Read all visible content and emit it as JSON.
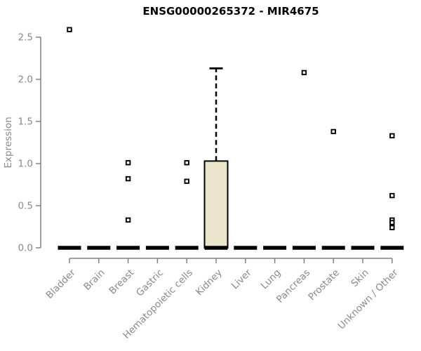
{
  "chart_data": {
    "type": "boxplot",
    "title": "ENSG00000265372 - MIR4675",
    "ylabel": "Expression",
    "xlabel": "",
    "ylim": [
      0.0,
      2.5
    ],
    "ytick_labels": [
      "0.0",
      "0.5",
      "1.0",
      "1.5",
      "2.0",
      "2.5"
    ],
    "ytick_values": [
      0.0,
      0.5,
      1.0,
      1.5,
      2.0,
      2.5
    ],
    "grid": false,
    "legend": null,
    "categories": [
      "Bladder",
      "Brain",
      "Breast",
      "Gastric",
      "Hematopoietic cells",
      "Kidney",
      "Liver",
      "Lung",
      "Pancreas",
      "Prostate",
      "Skin",
      "Unknown / Other"
    ],
    "boxes": [
      {
        "category": "Bladder",
        "median": 0.0,
        "q1": 0.0,
        "q3": 0.0,
        "whisker_low": 0.0,
        "whisker_high": 0.0,
        "outliers": [
          2.59
        ]
      },
      {
        "category": "Brain",
        "median": 0.0,
        "q1": 0.0,
        "q3": 0.0,
        "whisker_low": 0.0,
        "whisker_high": 0.0,
        "outliers": []
      },
      {
        "category": "Breast",
        "median": 0.0,
        "q1": 0.0,
        "q3": 0.0,
        "whisker_low": 0.0,
        "whisker_high": 0.0,
        "outliers": [
          1.01,
          0.82,
          0.33
        ]
      },
      {
        "category": "Gastric",
        "median": 0.0,
        "q1": 0.0,
        "q3": 0.0,
        "whisker_low": 0.0,
        "whisker_high": 0.0,
        "outliers": []
      },
      {
        "category": "Hematopoietic cells",
        "median": 0.0,
        "q1": 0.0,
        "q3": 0.0,
        "whisker_low": 0.0,
        "whisker_high": 0.0,
        "outliers": [
          1.01,
          0.79
        ]
      },
      {
        "category": "Kidney",
        "median": 0.0,
        "q1": 0.0,
        "q3": 1.03,
        "whisker_low": 0.0,
        "whisker_high": 2.13,
        "outliers": []
      },
      {
        "category": "Liver",
        "median": 0.0,
        "q1": 0.0,
        "q3": 0.0,
        "whisker_low": 0.0,
        "whisker_high": 0.0,
        "outliers": []
      },
      {
        "category": "Lung",
        "median": 0.0,
        "q1": 0.0,
        "q3": 0.0,
        "whisker_low": 0.0,
        "whisker_high": 0.0,
        "outliers": []
      },
      {
        "category": "Pancreas",
        "median": 0.0,
        "q1": 0.0,
        "q3": 0.0,
        "whisker_low": 0.0,
        "whisker_high": 0.0,
        "outliers": [
          2.08
        ]
      },
      {
        "category": "Prostate",
        "median": 0.0,
        "q1": 0.0,
        "q3": 0.0,
        "whisker_low": 0.0,
        "whisker_high": 0.0,
        "outliers": [
          1.38
        ]
      },
      {
        "category": "Skin",
        "median": 0.0,
        "q1": 0.0,
        "q3": 0.0,
        "whisker_low": 0.0,
        "whisker_high": 0.0,
        "outliers": []
      },
      {
        "category": "Unknown / Other",
        "median": 0.0,
        "q1": 0.0,
        "q3": 0.0,
        "whisker_low": 0.0,
        "whisker_high": 0.0,
        "outliers": [
          1.33,
          0.62,
          0.33,
          0.3,
          0.24
        ]
      }
    ],
    "colors": {
      "box_fill": "#EBE5CC",
      "box_border": "#000000",
      "median": "#000000",
      "whisker": "#000000",
      "outlier_border": "#000000",
      "outlier_fill": "#FFFFFF",
      "axis_line": "#828282",
      "axis_text": "#8A8A8A",
      "title_text": "#000000"
    }
  }
}
